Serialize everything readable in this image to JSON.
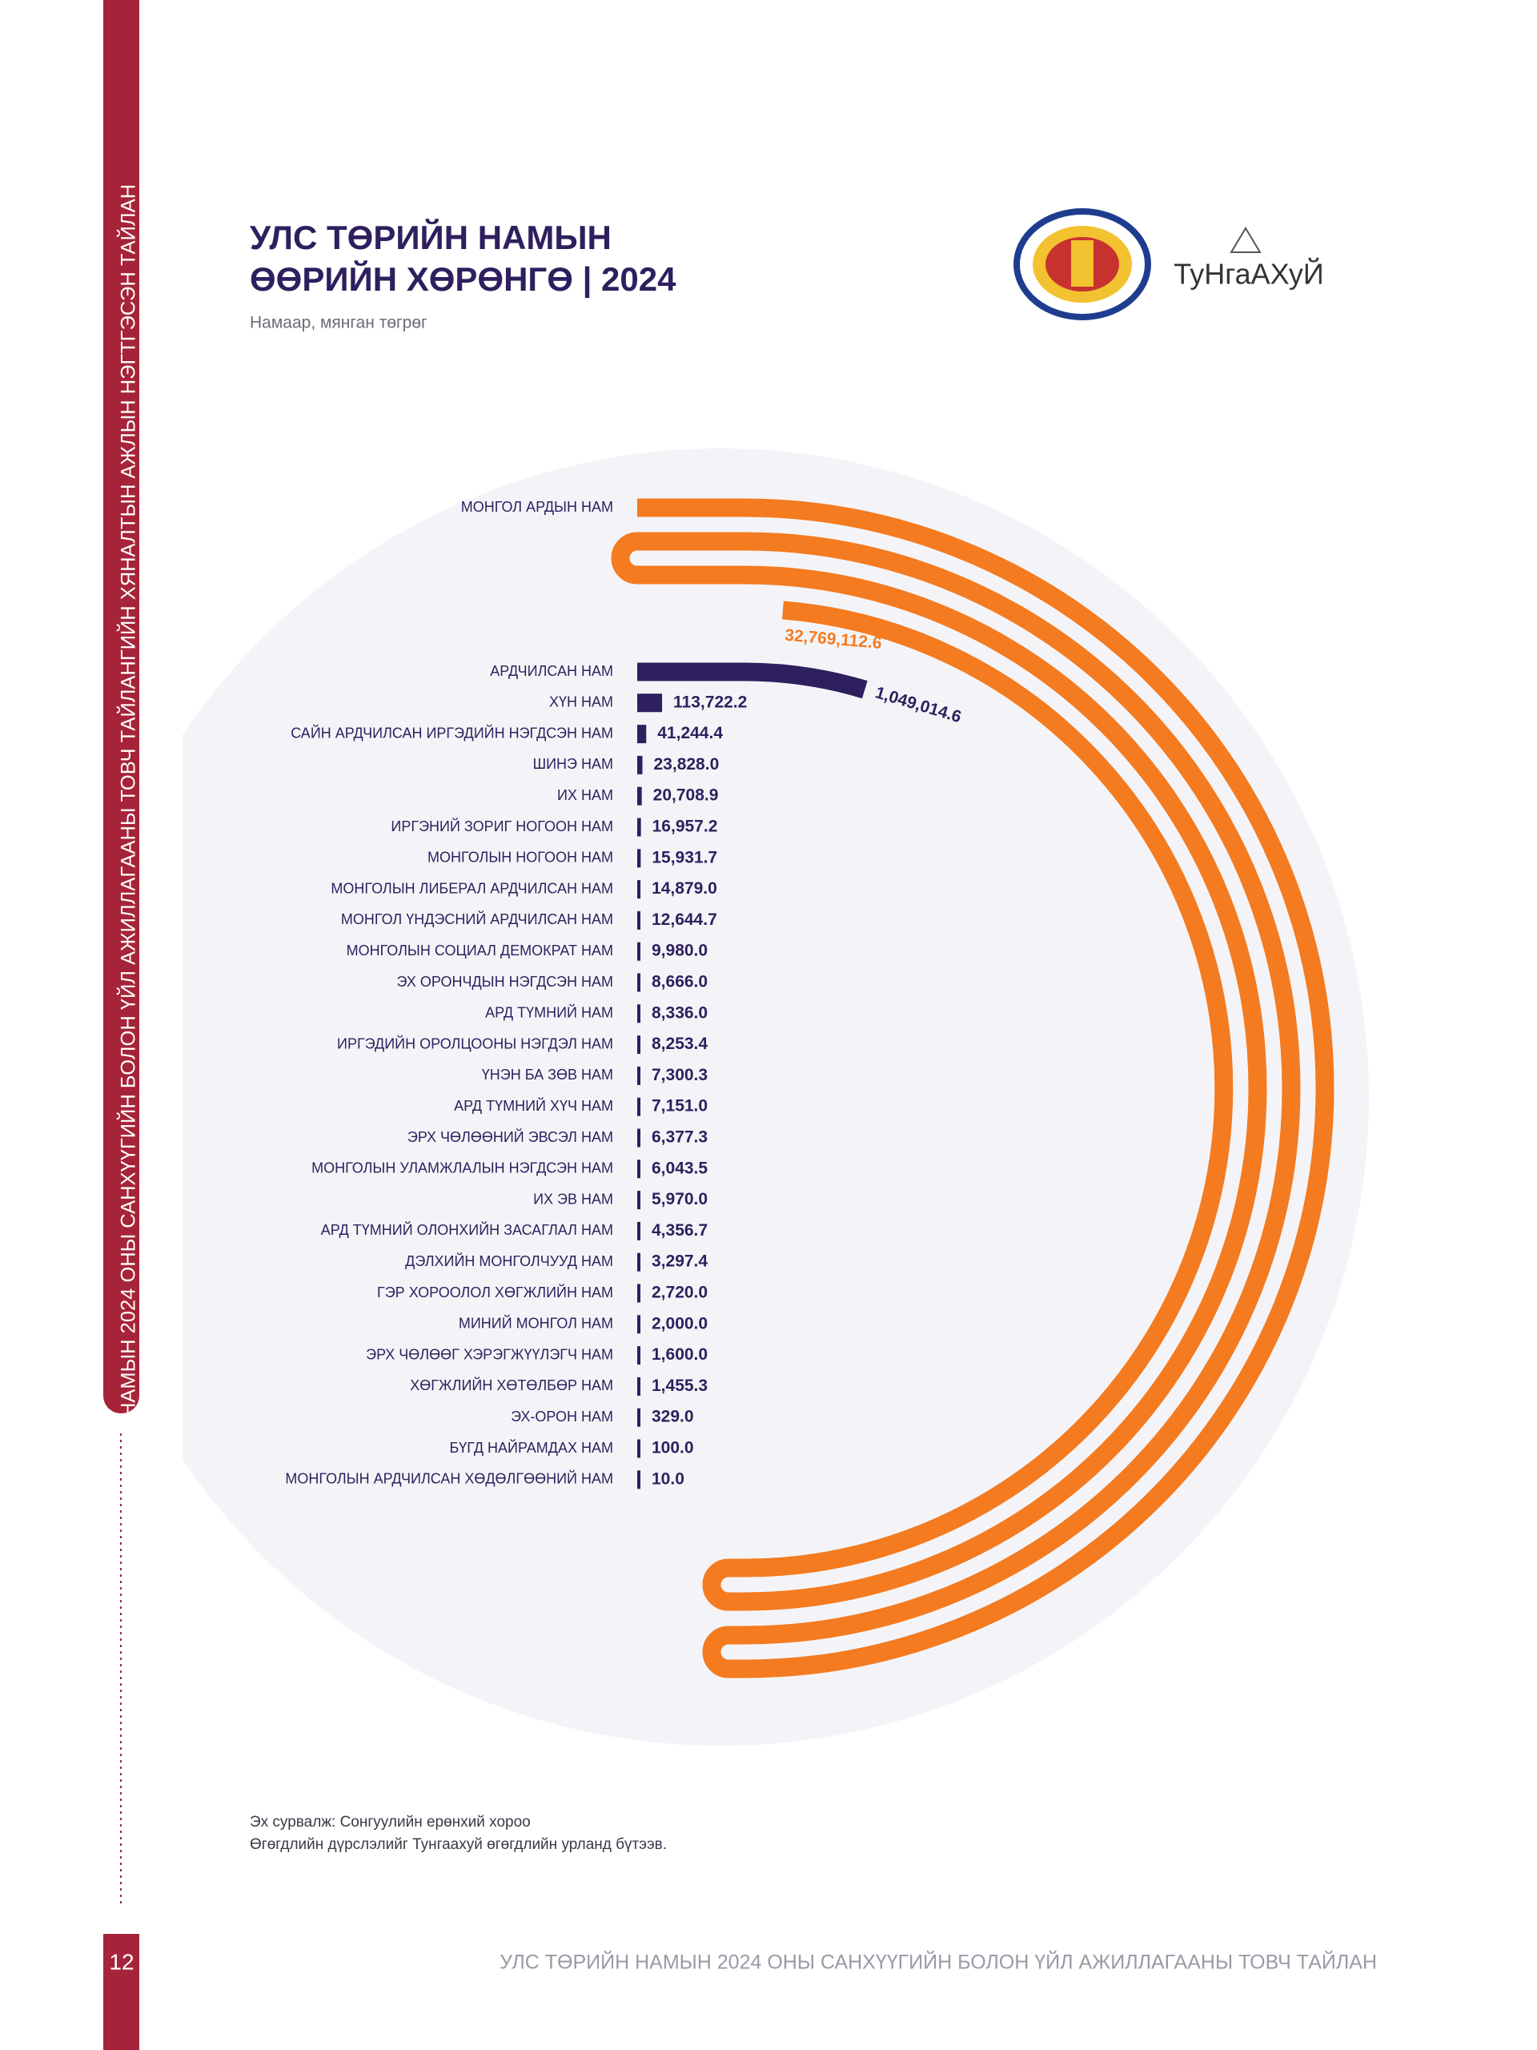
{
  "page": {
    "side_title": "НАМЫН 2024 ОНЫ САНХҮҮГИЙН БОЛОН ҮЙЛ АЖИЛЛАГААНЫ ТОВЧ ТАЙЛАНГИЙН ХЯНАЛТЫН АЖЛЫН НЭГТГЭСЭН ТАЙЛАН",
    "page_number": "12",
    "footer": "УЛС ТӨРИЙН НАМЫН  2024 ОНЫ САНХҮҮГИЙН  БОЛОН ҮЙЛ АЖИЛЛАГААНЫ  ТОВЧ ТАЙЛАН",
    "logo_text": "ТуНгаАХуЙ"
  },
  "chart_data": {
    "type": "spiral_bar",
    "title": [
      "УЛС ТӨРИЙН НАМЫН",
      "ӨӨРИЙН ХӨРӨНГӨ | 2024"
    ],
    "subtitle": "Намаар, мянган төгрөг",
    "source": [
      "Эх сурвалж: Сонгуулийн ерөнхий хороо",
      "Өгөгдлийн дүрслэлийг Тунгаахуй өгөгдлийн урланд бүтээв."
    ],
    "categories": [
      "МОНГОЛ АРДЫН НАМ",
      "АРДЧИЛСАН НАМ",
      "ХҮН НАМ",
      "САЙН АРДЧИЛСАН ИРГЭДИЙН НЭГДСЭН НАМ",
      "ШИНЭ НАМ",
      "ИХ НАМ",
      "ИРГЭНИЙ ЗОРИГ НОГООН НАМ",
      "МОНГОЛЫН НОГООН НАМ",
      "МОНГОЛЫН ЛИБЕРАЛ АРДЧИЛСАН НАМ",
      "МОНГОЛ ҮНДЭСНИЙ АРДЧИЛСАН НАМ",
      "МОНГОЛЫН СОЦИАЛ ДЕМОКРАТ НАМ",
      "ЭХ ОРОНЧДЫН НЭГДСЭН НАМ",
      "АРД ТҮМНИЙ НАМ",
      "ИРГЭДИЙН ОРОЛЦООНЫ НЭГДЭЛ НАМ",
      "ҮНЭН БА ЗӨВ НАМ",
      "АРД ТҮМНИЙ ХҮЧ НАМ",
      "ЭРХ ЧӨЛӨӨНИЙ ЭВСЭЛ НАМ",
      "МОНГОЛЫН УЛАМЖЛАЛЫН НЭГДСЭН НАМ",
      "ИХ ЭВ НАМ",
      "АРД ТҮМНИЙ ОЛОНХИЙН ЗАСАГЛАЛ НАМ",
      "ДЭЛХИЙН МОНГОЛЧУУД НАМ",
      "ГЭР ХОРООЛОЛ ХӨГЖЛИЙН НАМ",
      "МИНИЙ МОНГОЛ НАМ",
      "ЭРХ ЧӨЛӨӨГ ХЭРЭГЖҮҮЛЭГЧ НАМ",
      "ХӨГЖЛИЙН ХӨТӨЛБӨР НАМ",
      "ЭХ-ОРОН НАМ",
      "БҮГД НАЙРАМДАХ НАМ",
      "МОНГОЛЫН АРДЧИЛСАН ХӨДӨЛГӨӨНИЙ НАМ"
    ],
    "values": [
      32769112.6,
      1049014.6,
      113722.2,
      41244.4,
      23828.0,
      20708.9,
      16957.2,
      15931.7,
      14879.0,
      12644.7,
      9980.0,
      8666.0,
      8336.0,
      8253.4,
      7300.3,
      7151.0,
      6377.3,
      6043.5,
      5970.0,
      4356.7,
      3297.4,
      2720.0,
      2000.0,
      1600.0,
      1455.3,
      329.0,
      100.0,
      10.0
    ],
    "value_labels": [
      "32,769,112.6",
      "1,049,014.6",
      "113,722.2",
      "41,244.4",
      "23,828.0",
      "20,708.9",
      "16,957.2",
      "15,931.7",
      "14,879.0",
      "12,644.7",
      "9,980.0",
      "8,666.0",
      "8,336.0",
      "8,253.4",
      "7,300.3",
      "7,151.0",
      "6,377.3",
      "6,043.5",
      "5,970.0",
      "4,356.7",
      "3,297.4",
      "2,720.0",
      "2,000.0",
      "1,600.0",
      "1,455.3",
      "329.0",
      "100.0",
      "10.0"
    ],
    "colors": [
      "#f47b20",
      "#2e1f5e",
      "#2e1f5e",
      "#2e1f5e",
      "#2e1f5e",
      "#2e1f5e",
      "#2e1f5e",
      "#2e1f5e",
      "#2e1f5e",
      "#2e1f5e",
      "#2e1f5e",
      "#2e1f5e",
      "#2e1f5e",
      "#2e1f5e",
      "#2e1f5e",
      "#2e1f5e",
      "#2e1f5e",
      "#2e1f5e",
      "#2e1f5e",
      "#2e1f5e",
      "#2e1f5e",
      "#2e1f5e",
      "#2e1f5e",
      "#2e1f5e",
      "#2e1f5e",
      "#2e1f5e",
      "#2e1f5e",
      "#2e1f5e"
    ]
  }
}
